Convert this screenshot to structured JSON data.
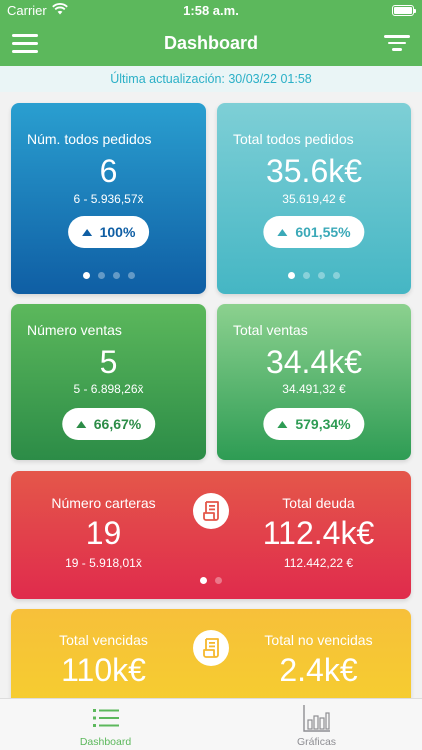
{
  "status_bar": {
    "carrier": "Carrier",
    "time": "1:58 a.m.",
    "wifi_icon": "wifi-icon",
    "battery_icon": "battery-icon"
  },
  "nav": {
    "title": "Dashboard",
    "menu_icon": "hamburger-menu-icon",
    "filter_icon": "filter-icon"
  },
  "banner": {
    "text": "Última actualización: 30/03/22 01:58"
  },
  "cards": {
    "num_pedidos": {
      "title": "Núm. todos pedidos",
      "value": "6",
      "sub": "6 - 5.936,57x̄",
      "change": "100%",
      "color": "#0f5ea4"
    },
    "total_pedidos": {
      "title": "Total todos pedidos",
      "value": "35.6k€",
      "sub": "35.619,42 €",
      "change": "601,55%",
      "color": "#45b6c4"
    },
    "num_ventas": {
      "title": "Número ventas",
      "value": "5",
      "sub": "5 - 6.898,26x̄",
      "change": "66,67%",
      "color": "#2c8c47"
    },
    "total_ventas": {
      "title": "Total ventas",
      "value": "34.4k€",
      "sub": "34.491,32 €",
      "change": "579,34%",
      "color": "#2e9c54"
    },
    "carteras": {
      "left_title": "Número carteras",
      "left_value": "19",
      "left_sub": "19 - 5.918,01x̄",
      "right_title": "Total deuda",
      "right_value": "112.4k€",
      "right_sub": "112.442,22 €",
      "icon": "receipt-icon",
      "color": "#e02b4c"
    },
    "vencidas": {
      "left_title": "Total vencidas",
      "left_value": "110k€",
      "right_title": "Total no vencidas",
      "right_value": "2.4k€",
      "icon": "receipt-icon",
      "color": "#f5c42e"
    }
  },
  "tabs": [
    {
      "label": "Dashboard",
      "icon": "list-icon",
      "active": true,
      "color": "#5cb85c"
    },
    {
      "label": "Gráficas",
      "icon": "bar-chart-icon",
      "active": false,
      "color": "#8e8e93"
    }
  ]
}
